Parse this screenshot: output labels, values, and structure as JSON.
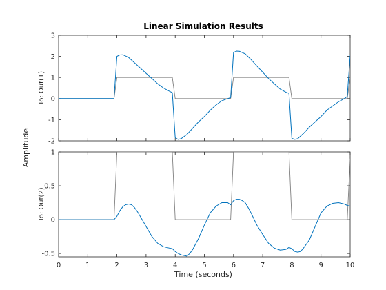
{
  "chart_data": {
    "type": "line",
    "title": "Linear Simulation Results",
    "xlabel": "Time (seconds)",
    "ylabel": "Amplitude",
    "xlim": [
      0,
      10
    ],
    "xticks": [
      "0",
      "1",
      "2",
      "3",
      "4",
      "5",
      "6",
      "7",
      "8",
      "9",
      "10"
    ],
    "grid": false,
    "colors": {
      "response": "#0072BD",
      "input": "#808080"
    },
    "panels": [
      {
        "ylabel": "To: Out(1)",
        "ylim": [
          -2,
          3
        ],
        "yticks": [
          {
            "v": 3,
            "t": "3"
          },
          {
            "v": 2,
            "t": "2"
          },
          {
            "v": 1,
            "t": "1"
          },
          {
            "v": 0,
            "t": "0"
          },
          {
            "v": -1,
            "t": "-1"
          },
          {
            "v": -2,
            "t": "-2"
          }
        ],
        "series": [
          {
            "role": "input",
            "x": [
              0,
              1.9,
              2.0,
              3.9,
              4.0,
              5.9,
              6.0,
              7.9,
              8.0,
              9.9,
              10.0
            ],
            "y": [
              0,
              0,
              1,
              1,
              0,
              0,
              1,
              1,
              0,
              0,
              1
            ]
          },
          {
            "role": "response",
            "x": [
              0,
              1.9,
              2.0,
              2.1,
              2.2,
              2.4,
              2.6,
              2.8,
              3.0,
              3.2,
              3.4,
              3.6,
              3.8,
              3.9,
              4.0,
              4.1,
              4.2,
              4.4,
              4.6,
              4.8,
              5.0,
              5.2,
              5.4,
              5.6,
              5.8,
              5.9,
              6.0,
              6.1,
              6.2,
              6.4,
              6.6,
              6.8,
              7.0,
              7.2,
              7.4,
              7.6,
              7.8,
              7.9,
              8.0,
              8.1,
              8.2,
              8.4,
              8.6,
              8.8,
              9.0,
              9.2,
              9.4,
              9.6,
              9.8,
              9.9,
              10.0
            ],
            "y": [
              0,
              0,
              2.0,
              2.07,
              2.08,
              1.95,
              1.7,
              1.45,
              1.2,
              0.95,
              0.7,
              0.5,
              0.35,
              0.28,
              -1.85,
              -1.93,
              -1.9,
              -1.7,
              -1.4,
              -1.1,
              -0.85,
              -0.55,
              -0.3,
              -0.1,
              0.0,
              0.05,
              2.18,
              2.25,
              2.24,
              2.12,
              1.85,
              1.55,
              1.25,
              0.95,
              0.7,
              0.45,
              0.3,
              0.25,
              -1.88,
              -1.93,
              -1.9,
              -1.65,
              -1.35,
              -1.1,
              -0.85,
              -0.55,
              -0.35,
              -0.15,
              0.0,
              0.1,
              2.05
            ]
          }
        ]
      },
      {
        "ylabel": "To: Out(2)",
        "ylim": [
          -0.55,
          1
        ],
        "yticks": [
          {
            "v": 1,
            "t": "1"
          },
          {
            "v": 0.5,
            "t": "0.5"
          },
          {
            "v": 0,
            "t": "0"
          },
          {
            "v": -0.5,
            "t": "-0.5"
          }
        ],
        "series": [
          {
            "role": "input",
            "x": [
              0,
              1.9,
              2.0,
              3.9,
              4.0,
              5.9,
              6.0,
              7.9,
              8.0,
              9.9,
              10.0
            ],
            "y": [
              0,
              0,
              1,
              1,
              0,
              0,
              1,
              1,
              0,
              0,
              0.9
            ]
          },
          {
            "role": "response",
            "x": [
              0,
              1.9,
              2.0,
              2.1,
              2.2,
              2.3,
              2.4,
              2.5,
              2.6,
              2.7,
              2.8,
              3.0,
              3.2,
              3.4,
              3.6,
              3.8,
              3.9,
              4.0,
              4.1,
              4.2,
              4.3,
              4.4,
              4.5,
              4.6,
              4.8,
              5.0,
              5.2,
              5.4,
              5.6,
              5.8,
              5.9,
              6.0,
              6.1,
              6.2,
              6.3,
              6.4,
              6.5,
              6.6,
              6.8,
              7.0,
              7.2,
              7.4,
              7.6,
              7.8,
              7.9,
              8.0,
              8.1,
              8.2,
              8.3,
              8.4,
              8.6,
              8.8,
              9.0,
              9.2,
              9.4,
              9.6,
              9.8,
              9.9,
              10.0
            ],
            "y": [
              0,
              0,
              0.05,
              0.13,
              0.19,
              0.22,
              0.23,
              0.22,
              0.18,
              0.12,
              0.05,
              -0.1,
              -0.25,
              -0.35,
              -0.4,
              -0.42,
              -0.43,
              -0.47,
              -0.5,
              -0.52,
              -0.53,
              -0.54,
              -0.5,
              -0.44,
              -0.28,
              -0.08,
              0.1,
              0.2,
              0.25,
              0.25,
              0.22,
              0.28,
              0.3,
              0.3,
              0.28,
              0.25,
              0.18,
              0.1,
              -0.08,
              -0.22,
              -0.35,
              -0.42,
              -0.45,
              -0.44,
              -0.41,
              -0.43,
              -0.47,
              -0.48,
              -0.47,
              -0.42,
              -0.3,
              -0.1,
              0.1,
              0.2,
              0.24,
              0.25,
              0.23,
              0.21,
              0.2
            ]
          }
        ]
      }
    ]
  }
}
